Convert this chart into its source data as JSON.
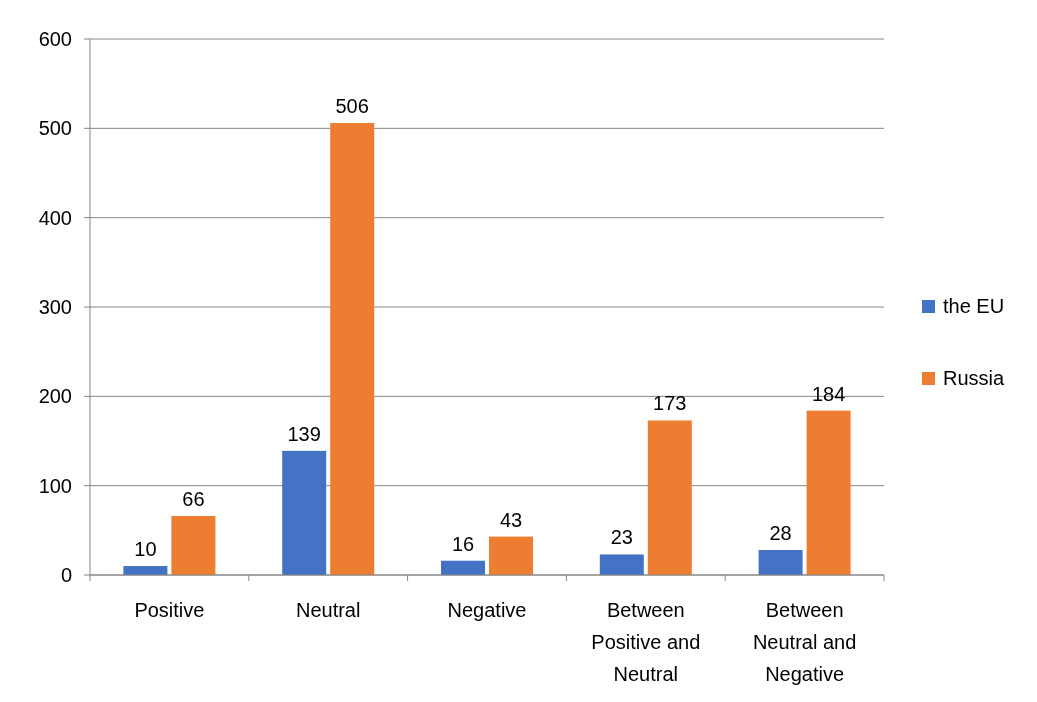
{
  "chart_data": {
    "type": "bar",
    "categories": [
      "Positive",
      "Neutral",
      "Negative",
      "Between Positive and Neutral",
      "Between Neutral and Negative"
    ],
    "series": [
      {
        "name": "the EU",
        "color": "#4472c4",
        "values": [
          10,
          139,
          16,
          23,
          28
        ]
      },
      {
        "name": "Russia",
        "color": "#ed7d31",
        "values": [
          66,
          506,
          43,
          173,
          184
        ]
      }
    ],
    "ylim": [
      0,
      600
    ],
    "yticks": [
      0,
      100,
      200,
      300,
      400,
      500,
      600
    ],
    "grid": "y",
    "legend": "right",
    "data_labels": true
  }
}
